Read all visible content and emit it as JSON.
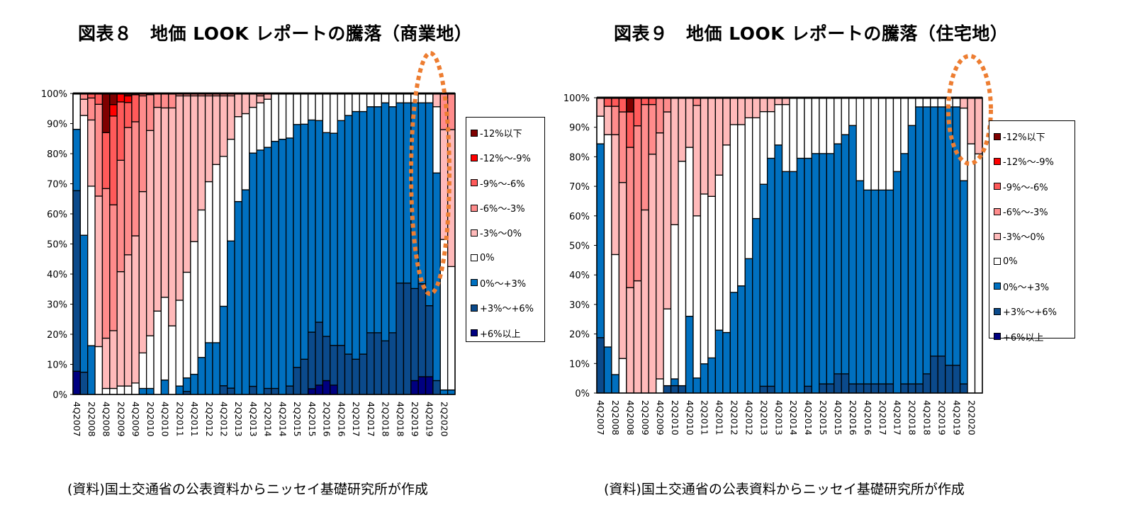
{
  "charts_text": {
    "left_title": "図表８　地価 LOOK レポートの騰落（商業地）",
    "right_title": "図表９　地価 LOOK レポートの騰落（住宅地）",
    "left_source": "(資料)国土交通省の公表資料からニッセイ基礎研究所が作成",
    "right_source": "(資料)国土交通省の公表資料からニッセイ基礎研究所が作成"
  },
  "legend": [
    {
      "label": "-12%以下",
      "color": "#7F0000"
    },
    {
      "label": "-12%～-9%",
      "color": "#FF0000"
    },
    {
      "label": "-9%～-6%",
      "color": "#FF5A5A"
    },
    {
      "label": "-6%～-3%",
      "color": "#FF8C8C"
    },
    {
      "label": "-3%～0%",
      "color": "#FFBABA"
    },
    {
      "label": "0%",
      "color": "#FFFFFF"
    },
    {
      "label": "0%～+3%",
      "color": "#0070C0"
    },
    {
      "label": "+3%～+6%",
      "color": "#0B4A8B"
    },
    {
      "label": "+6%以上",
      "color": "#000080"
    }
  ],
  "highlight_color": "#ED7D31",
  "chart_data": [
    {
      "type": "bar",
      "stacked": "percent",
      "title": "図表８　地価 LOOK レポートの騰落（商業地）",
      "ylim": [
        0,
        100
      ],
      "y_ticks": [
        "0%",
        "10%",
        "20%",
        "30%",
        "40%",
        "50%",
        "60%",
        "70%",
        "80%",
        "90%",
        "100%"
      ],
      "x_tick_labels": [
        "4Q2007",
        "2Q2008",
        "4Q2008",
        "2Q2009",
        "4Q2009",
        "2Q2010",
        "4Q2010",
        "2Q2011",
        "4Q2011",
        "2Q2012",
        "4Q2012",
        "2Q2013",
        "4Q2013",
        "2Q2014",
        "4Q2014",
        "2Q2015",
        "4Q2015",
        "2Q2016",
        "4Q2016",
        "2Q2017",
        "4Q2017",
        "2Q2018",
        "4Q2018",
        "2Q2019",
        "4Q2019",
        "2Q2020"
      ],
      "legend_position": "right",
      "series": [
        {
          "name": "+6%以上",
          "values": [
            7.7,
            0,
            0,
            0,
            0,
            0,
            0,
            0,
            0,
            0,
            0,
            0,
            0,
            0,
            0,
            0,
            0,
            0,
            0,
            0,
            0,
            0,
            0,
            0,
            0,
            0,
            0,
            0,
            0,
            0,
            0,
            0,
            1.9,
            3.1,
            4.6,
            3.1,
            0,
            0,
            0,
            0,
            0,
            0,
            0,
            0,
            0,
            0,
            4.6,
            5.9,
            5.9,
            0,
            0,
            0
          ]
        },
        {
          "name": "+3%～+6%",
          "values": [
            60,
            7.4,
            0,
            0,
            0,
            0,
            0,
            0,
            0,
            0,
            0,
            0,
            0,
            0,
            0,
            1,
            0,
            0,
            0,
            0,
            2.9,
            2.1,
            0,
            0,
            2.7,
            0,
            2,
            2,
            0,
            2.8,
            9,
            11.7,
            18.8,
            20.9,
            14.7,
            13.2,
            16.3,
            13.4,
            11.7,
            13.4,
            20.5,
            20.5,
            17.8,
            20.5,
            37,
            37,
            30.6,
            30.9,
            23.6,
            4.6,
            0,
            0
          ]
        },
        {
          "name": "0%～+3%",
          "values": [
            20.4,
            45.5,
            16.2,
            0,
            0,
            0,
            0,
            0,
            0,
            2,
            2,
            0,
            4.8,
            0,
            2.8,
            4.5,
            6.7,
            12.3,
            17.2,
            17.2,
            26.4,
            48.9,
            64.1,
            68,
            77.5,
            81.2,
            80.1,
            82.1,
            84.8,
            82.4,
            80.7,
            78.1,
            70.5,
            67,
            67.7,
            70.5,
            74.7,
            79.3,
            82.3,
            80.6,
            75.1,
            75.1,
            79.1,
            75.1,
            59.9,
            59.9,
            61.7,
            60.1,
            67.4,
            69,
            1.5,
            1.5
          ]
        },
        {
          "name": "0%",
          "values": [
            11.9,
            39.8,
            53,
            15.9,
            2,
            2,
            2.8,
            2.8,
            3.8,
            11.8,
            17.5,
            27.7,
            27.5,
            22.8,
            28.5,
            35.1,
            44.1,
            49,
            53.5,
            59.2,
            49.8,
            33.8,
            28.2,
            25.3,
            15.2,
            15.7,
            16,
            15.7,
            15.2,
            14.8,
            10.3,
            10.2,
            8.8,
            9,
            13,
            13.2,
            9,
            7.3,
            6,
            6,
            4.4,
            4.4,
            3.1,
            4.4,
            3.1,
            3.1,
            3.1,
            3.1,
            3.1,
            22,
            50,
            41
          ]
        },
        {
          "name": "-3%～0%",
          "values": [
            0,
            5.4,
            22,
            50,
            16.7,
            19.2,
            38,
            43.6,
            48.9,
            53.6,
            68.2,
            67.7,
            62.9,
            72.4,
            67.9,
            58.6,
            48.4,
            37.9,
            28.5,
            22.8,
            20.1,
            14.4,
            7.7,
            6.7,
            4.6,
            2.3,
            1.9,
            0.2,
            0,
            0,
            0,
            0,
            0,
            0,
            0,
            0,
            0,
            0,
            0,
            0,
            0,
            0,
            0,
            0,
            0,
            0,
            0,
            0,
            0,
            4.4,
            36.5,
            45.5
          ]
        },
        {
          "name": "-6%～-3%",
          "values": [
            0,
            1.9,
            7.3,
            30.5,
            49.7,
            41.8,
            37,
            42.3,
            37.9,
            31.8,
            11.9,
            4.6,
            4.8,
            4.8,
            0.8,
            0.8,
            0.8,
            0.8,
            0.8,
            0.8,
            0.8,
            0.8,
            0,
            0,
            0,
            0.8,
            0,
            0,
            0,
            0,
            0,
            0,
            0,
            0,
            0,
            0,
            0,
            0,
            0,
            0,
            0,
            0,
            0,
            0,
            0,
            0,
            0,
            0,
            0,
            0,
            12,
            12
          ]
        },
        {
          "name": "-9%～-6%",
          "values": [
            0,
            0,
            1.5,
            3.6,
            18.6,
            29.5,
            19.4,
            8.3,
            9,
            0.8,
            0.4,
            0,
            0,
            0,
            0,
            0,
            0,
            0,
            0,
            0,
            0,
            0,
            0,
            0,
            0,
            0,
            0,
            0,
            0,
            0,
            0,
            0,
            0,
            0,
            0,
            0,
            0,
            0,
            0,
            0,
            0,
            0,
            0,
            0,
            0,
            0,
            0,
            0,
            0,
            0,
            0,
            0
          ]
        },
        {
          "name": "-12%～-9%",
          "values": [
            0,
            0,
            0,
            0,
            0,
            3.8,
            2.8,
            2.2,
            0.4,
            0,
            0,
            0,
            0,
            0,
            0,
            0,
            0,
            0,
            0,
            0,
            0,
            0,
            0,
            0,
            0,
            0,
            0,
            0,
            0,
            0,
            0,
            0,
            0,
            0,
            0,
            0,
            0,
            0,
            0,
            0,
            0,
            0,
            0,
            0,
            0,
            0,
            0,
            0,
            0,
            0,
            0,
            0
          ]
        },
        {
          "name": "-12%以下",
          "values": [
            0,
            0,
            0,
            0,
            13,
            3.7,
            0,
            0.8,
            0,
            0,
            0,
            0,
            0,
            0,
            0,
            0,
            0,
            0,
            0,
            0,
            0,
            0,
            0,
            0,
            0,
            0,
            0,
            0,
            0,
            0,
            0,
            0,
            0,
            0,
            0,
            0,
            0,
            0,
            0,
            0,
            0,
            0,
            0,
            0,
            0,
            0,
            0,
            0,
            0,
            0,
            0,
            0
          ]
        }
      ]
    },
    {
      "type": "bar",
      "stacked": "percent",
      "title": "図表９　地価 LOOK レポートの騰落（住宅地）",
      "ylim": [
        0,
        100
      ],
      "y_ticks": [
        "0%",
        "10%",
        "20%",
        "30%",
        "40%",
        "50%",
        "60%",
        "70%",
        "80%",
        "90%",
        "100%"
      ],
      "x_tick_labels": [
        "4Q2007",
        "2Q2008",
        "4Q2008",
        "2Q2009",
        "4Q2009",
        "2Q2010",
        "4Q2010",
        "2Q2011",
        "4Q2011",
        "2Q2012",
        "4Q2012",
        "2Q2013",
        "4Q2013",
        "2Q2014",
        "4Q2014",
        "2Q2015",
        "4Q2015",
        "2Q2016",
        "4Q2016",
        "2Q2017",
        "4Q2017",
        "2Q2018",
        "4Q2018",
        "2Q2019",
        "4Q2019",
        "2Q2020"
      ],
      "legend_position": "right",
      "series": [
        {
          "name": "+6%以上",
          "values": [
            0,
            0,
            0,
            0,
            0,
            0,
            0,
            0,
            0,
            0,
            0,
            0,
            0,
            0,
            0,
            0,
            0,
            0,
            0,
            0,
            0,
            0,
            0,
            0,
            0,
            0,
            0,
            0,
            0,
            0,
            0,
            0,
            0,
            0,
            0,
            0,
            0,
            0,
            0,
            0,
            0,
            0,
            0,
            0,
            0,
            0,
            0,
            0,
            0,
            0,
            0,
            0
          ]
        },
        {
          "name": "+3%～+6%",
          "values": [
            18.75,
            0,
            0,
            0,
            0,
            0,
            0,
            0,
            0,
            2.5,
            2.5,
            2.5,
            0,
            0,
            0,
            0,
            0,
            0,
            0,
            0,
            0,
            0,
            2.3,
            2.3,
            0,
            0,
            0,
            0,
            2.3,
            0,
            3.1,
            3.1,
            6.5,
            6.5,
            3.1,
            3.1,
            3.1,
            3.1,
            3.1,
            3.1,
            0,
            3.1,
            3.1,
            3.1,
            6.5,
            12.5,
            12.5,
            9.4,
            9.4,
            3.1,
            0,
            0
          ]
        },
        {
          "name": "0%～+3%",
          "values": [
            65.65,
            15.6,
            6.25,
            0,
            0,
            0,
            0,
            0,
            0,
            0,
            2.3,
            0,
            26,
            5.1,
            9.9,
            11.9,
            21.3,
            20.5,
            34.1,
            36.3,
            45.5,
            59.1,
            68.4,
            77.2,
            84,
            75,
            75,
            79.5,
            77.2,
            81.1,
            78,
            78,
            77.9,
            81,
            87.5,
            68.8,
            65.65,
            65.65,
            65.65,
            65.65,
            75,
            78,
            87.5,
            93.8,
            90.4,
            84.4,
            84.4,
            87.5,
            87.5,
            68.8,
            0,
            0
          ]
        },
        {
          "name": "0%",
          "values": [
            9.35,
            71.9,
            40.65,
            11.7,
            0,
            0,
            0,
            0,
            4.8,
            26,
            52.2,
            76,
            57.2,
            54.9,
            57.5,
            54.7,
            52.5,
            63.5,
            56.8,
            54.6,
            47.7,
            34.1,
            24.6,
            15.8,
            13.7,
            22.7,
            25,
            20.5,
            20.5,
            18.9,
            18.9,
            18.9,
            15.6,
            12.5,
            9.4,
            28.1,
            31.25,
            31.25,
            31.25,
            31.25,
            25,
            18.9,
            9.4,
            3.1,
            3.1,
            3.1,
            3.1,
            3.1,
            3.1,
            24.6,
            84.4,
            81
          ]
        },
        {
          "name": "-3%～0%",
          "values": [
            6.25,
            9.6,
            40.6,
            59.6,
            35.7,
            38,
            62,
            80.9,
            83.3,
            66.7,
            43,
            21.5,
            16.8,
            37.4,
            32.6,
            33.4,
            26.2,
            16,
            9.1,
            9.1,
            6.8,
            6.8,
            4.7,
            4.7,
            2.3,
            2.3,
            0,
            0,
            0,
            0,
            0,
            0,
            0,
            0,
            0,
            0,
            0,
            0,
            0,
            0,
            0,
            0,
            0,
            0,
            0,
            0,
            0,
            0,
            0,
            3.5,
            15.6,
            19
          ]
        },
        {
          "name": "-6%～-3%",
          "values": [
            0,
            0,
            9.6,
            23.9,
            47.5,
            52.5,
            35.7,
            16.8,
            11.9,
            4.8,
            0,
            0,
            0,
            2.6,
            0,
            0,
            0,
            0,
            0,
            0,
            0,
            0,
            0,
            0,
            0,
            0,
            0,
            0,
            0,
            0,
            0,
            0,
            0,
            0,
            0,
            0,
            0,
            0,
            0,
            0,
            0,
            0,
            0,
            0,
            0,
            0,
            0,
            0,
            0,
            0,
            0,
            0
          ]
        },
        {
          "name": "-9%～-6%",
          "values": [
            0,
            2.9,
            2.9,
            4.8,
            12,
            9.5,
            2.3,
            2.3,
            0,
            0,
            0,
            0,
            0,
            0,
            0,
            0,
            0,
            0,
            0,
            0,
            0,
            0,
            0,
            0,
            0,
            0,
            0,
            0,
            0,
            0,
            0,
            0,
            0,
            0,
            0,
            0,
            0,
            0,
            0,
            0,
            0,
            0,
            0,
            0,
            0,
            0,
            0,
            0,
            0,
            0,
            0,
            0
          ]
        },
        {
          "name": "-12%～-9%",
          "values": [
            0,
            0,
            0,
            0,
            0,
            0,
            0,
            0,
            0,
            0,
            0,
            0,
            0,
            0,
            0,
            0,
            0,
            0,
            0,
            0,
            0,
            0,
            0,
            0,
            0,
            0,
            0,
            0,
            0,
            0,
            0,
            0,
            0,
            0,
            0,
            0,
            0,
            0,
            0,
            0,
            0,
            0,
            0,
            0,
            0,
            0,
            0,
            0,
            0,
            0,
            0,
            0
          ]
        },
        {
          "name": "-12%以下",
          "values": [
            0,
            0,
            0,
            0,
            4.8,
            0,
            0,
            0,
            0,
            0,
            0,
            0,
            0,
            0,
            0,
            0,
            0,
            0,
            0,
            0,
            0,
            0,
            0,
            0,
            0,
            0,
            0,
            0,
            0,
            0,
            0,
            0,
            0,
            0,
            0,
            0,
            0,
            0,
            0,
            0,
            0,
            0,
            0,
            0,
            0,
            0,
            0,
            0,
            0,
            0,
            0,
            0
          ]
        }
      ]
    }
  ]
}
